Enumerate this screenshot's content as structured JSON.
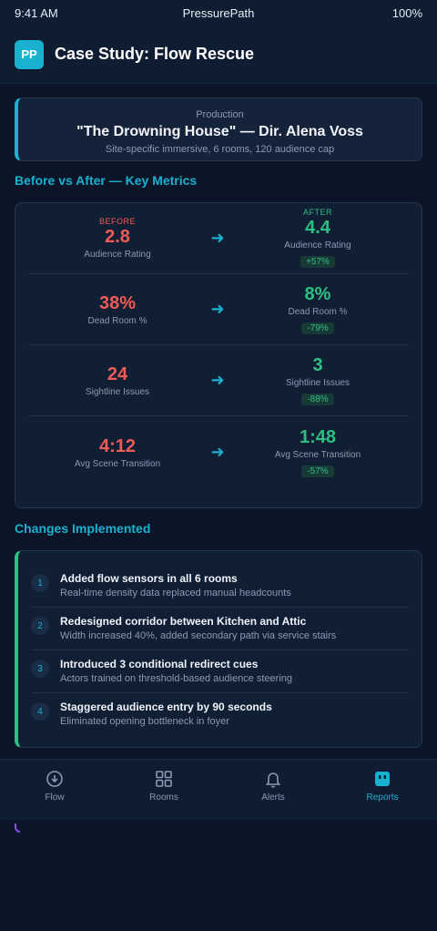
{
  "status_bar": {
    "time": "9:41 AM",
    "app_name": "PressurePath",
    "battery": "100%"
  },
  "header": {
    "logo": "PP",
    "title": "Case Study: Flow Rescue"
  },
  "production": {
    "eyebrow": "Production",
    "title": "\"The Drowning House\" — Dir. Alena Voss",
    "subtitle": "Site-specific immersive, 6 rooms, 120 audience cap"
  },
  "metrics_heading": "Before vs After — Key Metrics",
  "before_tag": "BEFORE",
  "after_tag": "AFTER",
  "metrics": [
    {
      "before": "2.8",
      "after": "4.4",
      "label": "Audience Rating",
      "change": "+57%"
    },
    {
      "before": "38%",
      "after": "8%",
      "label": "Dead Room %",
      "change": "-79%"
    },
    {
      "before": "24",
      "after": "3",
      "label": "Sightline Issues",
      "change": "-88%"
    },
    {
      "before": "4:12",
      "after": "1:48",
      "label": "Avg Scene Transition",
      "change": "-57%"
    }
  ],
  "changes_heading": "Changes Implemented",
  "changes": [
    {
      "num": "1",
      "title": "Added flow sensors in all 6 rooms",
      "detail": "Real-time density data replaced manual headcounts"
    },
    {
      "num": "2",
      "title": "Redesigned corridor between Kitchen and Attic",
      "detail": "Width increased 40%, added secondary path via service stairs"
    },
    {
      "num": "3",
      "title": "Introduced 3 conditional redirect cues",
      "detail": "Actors trained on threshold-based audience steering"
    },
    {
      "num": "4",
      "title": "Staggered audience entry by 90 seconds",
      "detail": "Eliminated opening bottleneck in foyer"
    }
  ],
  "tabs": [
    {
      "label": "Flow",
      "icon": "flow-icon"
    },
    {
      "label": "Rooms",
      "icon": "rooms-grid-icon"
    },
    {
      "label": "Alerts",
      "icon": "bell-icon"
    },
    {
      "label": "Reports",
      "icon": "reports-icon",
      "active": true
    }
  ],
  "colors": {
    "accent": "#1ab0d0",
    "before_red": "#ef5b55",
    "after_green": "#2fbf82",
    "background": "#0b1527"
  }
}
